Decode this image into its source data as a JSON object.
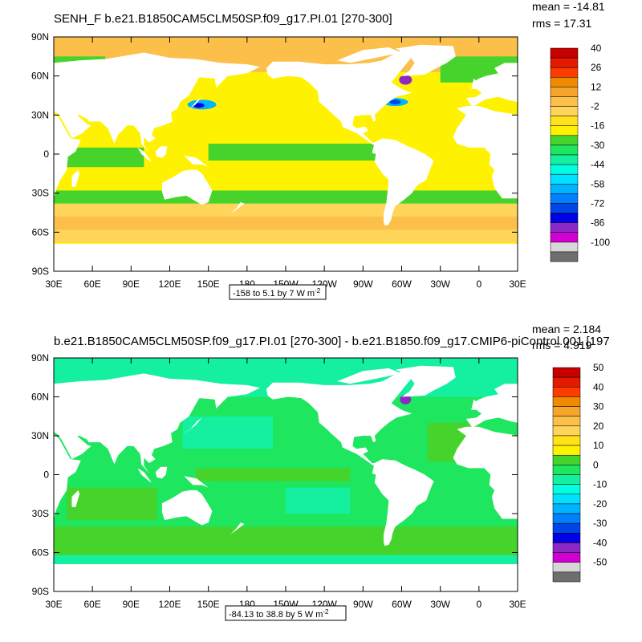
{
  "chart_data": [
    {
      "type": "heatmap",
      "map": "global-latlon",
      "title": "SENH_F b.e21.B1850CAM5CLM50SP.f09_g17.PI.01 [270-300]",
      "stats": {
        "mean": "mean = -14.81",
        "rms": "rms = 17.31"
      },
      "lat_ticks": [
        "90N",
        "60N",
        "30N",
        "0",
        "30S",
        "60S",
        "90S"
      ],
      "lon_ticks": [
        "30E",
        "60E",
        "90E",
        "120E",
        "150E",
        "180",
        "150W",
        "120W",
        "90W",
        "60W",
        "30W",
        "0",
        "30E"
      ],
      "range_label": "-158 to 5.1 by 7  W m",
      "range_sup": "-2",
      "colorbar_labels": [
        "40",
        "26",
        "12",
        "-2",
        "-16",
        "-30",
        "-44",
        "-58",
        "-72",
        "-86",
        "-100"
      ],
      "colorbar_colors": [
        "#c80000",
        "#e41a00",
        "#ff3c00",
        "#f08a00",
        "#f5a52b",
        "#fbbf4a",
        "#ffd45a",
        "#ffe21a",
        "#fff200",
        "#46d42c",
        "#1ee65f",
        "#14f0a0",
        "#00ffe0",
        "#00e1ff",
        "#00b4ff",
        "#0080ff",
        "#0046e6",
        "#0000e6",
        "#8c28c8",
        "#d200d2",
        "#d7d7d7",
        "#6e6e6e"
      ],
      "regions": [
        {
          "label": "ocean background",
          "value": -12,
          "color": "#fff200"
        },
        {
          "label": "arctic ocean",
          "value": -2,
          "color": "#fbbf4a"
        },
        {
          "label": "southern ocean band",
          "value": -4,
          "color": "#ffd45a"
        },
        {
          "label": "equatorial pacific",
          "value": -22,
          "color": "#46d42c"
        },
        {
          "label": "kuroshio",
          "value": -60,
          "color": "#00b4ff"
        },
        {
          "label": "gulf stream",
          "value": -75,
          "color": "#0046e6"
        }
      ]
    },
    {
      "type": "heatmap",
      "map": "global-latlon",
      "title": "b.e21.B1850CAM5CLM50SP.f09_g17.PI.01 [270-300] - b.e21.B1850.f09_g17.CMIP6-piControl.001 [197",
      "stats": {
        "mean": "mean = 2.184",
        "rms": "rms = 4.919"
      },
      "lat_ticks": [
        "90N",
        "60N",
        "30N",
        "0",
        "30S",
        "60S",
        "90S"
      ],
      "lon_ticks": [
        "30E",
        "60E",
        "90E",
        "120E",
        "150E",
        "180",
        "150W",
        "120W",
        "90W",
        "60W",
        "30W",
        "0",
        "30E"
      ],
      "range_label": "-84.13 to 38.8 by 5  W m",
      "range_sup": "-2",
      "colorbar_labels": [
        "50",
        "40",
        "30",
        "20",
        "10",
        "0",
        "-10",
        "-20",
        "-30",
        "-40",
        "-50"
      ],
      "colorbar_colors": [
        "#c80000",
        "#e41a00",
        "#ff3c00",
        "#f08a00",
        "#f5a52b",
        "#fbbf4a",
        "#ffd45a",
        "#ffe21a",
        "#fff200",
        "#46d42c",
        "#1ee65f",
        "#14f0a0",
        "#00ffe0",
        "#00e1ff",
        "#00b4ff",
        "#0080ff",
        "#0046e6",
        "#0000e6",
        "#8c28c8",
        "#d200d2",
        "#d7d7d7",
        "#6e6e6e"
      ],
      "regions": [
        {
          "label": "ocean background",
          "value": 2,
          "color": "#1ee65f"
        },
        {
          "label": "southern ocean",
          "value": 7,
          "color": "#46d42c"
        },
        {
          "label": "arctic ocean",
          "value": -2,
          "color": "#14f0a0"
        },
        {
          "label": "equatorial pacific",
          "value": 4,
          "color": "#46d42c"
        },
        {
          "label": "labrador sea",
          "value": -25,
          "color": "#8c28c8"
        }
      ]
    }
  ]
}
